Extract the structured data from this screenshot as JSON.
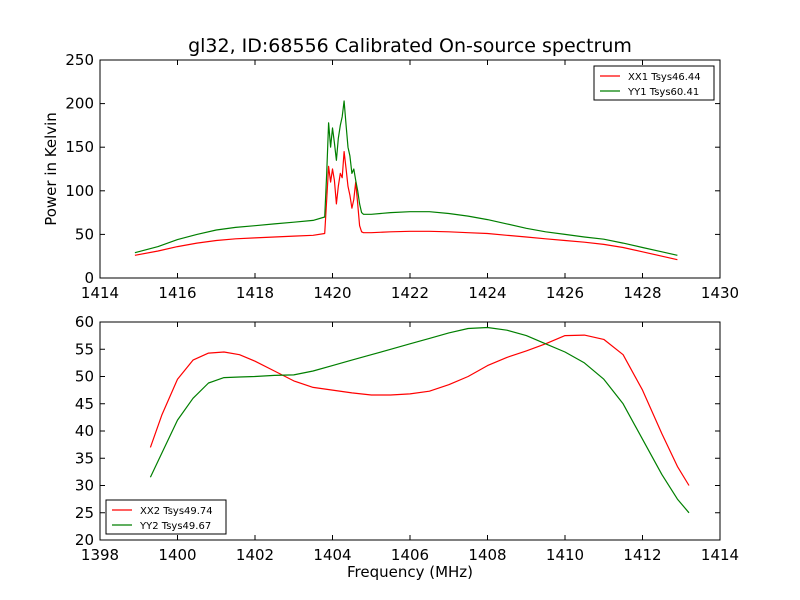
{
  "figure_title": "gl32, ID:68556 Calibrated On-source spectrum",
  "colors": {
    "red": "#ff0000",
    "green": "#007f00"
  },
  "chart_data": [
    {
      "type": "line",
      "title": "gl32, ID:68556 Calibrated On-source spectrum",
      "xlabel": "",
      "ylabel": "Power in Kelvin",
      "xlim": [
        1414,
        1430
      ],
      "ylim": [
        0,
        250
      ],
      "xticks": [
        1414,
        1416,
        1418,
        1420,
        1422,
        1424,
        1426,
        1428,
        1430
      ],
      "yticks": [
        0,
        50,
        100,
        150,
        200,
        250
      ],
      "legend_position": "top-right",
      "series": [
        {
          "name": "XX1 Tsys46.44",
          "color": "#ff0000",
          "x": [
            1414.9,
            1415.5,
            1416.0,
            1416.5,
            1417.0,
            1417.5,
            1418.0,
            1418.5,
            1419.0,
            1419.5,
            1419.8,
            1419.85,
            1419.9,
            1419.95,
            1420.0,
            1420.05,
            1420.1,
            1420.15,
            1420.2,
            1420.25,
            1420.3,
            1420.35,
            1420.4,
            1420.45,
            1420.5,
            1420.55,
            1420.6,
            1420.65,
            1420.7,
            1420.75,
            1420.8,
            1421.0,
            1421.5,
            1422.0,
            1422.5,
            1423.0,
            1423.5,
            1424.0,
            1424.5,
            1425.0,
            1425.5,
            1426.0,
            1426.5,
            1427.0,
            1427.5,
            1428.0,
            1428.5,
            1428.9
          ],
          "y": [
            26,
            31,
            36,
            40,
            43,
            45,
            46,
            47,
            48,
            49,
            51,
            90,
            128,
            110,
            125,
            112,
            85,
            105,
            120,
            115,
            145,
            125,
            105,
            95,
            80,
            90,
            110,
            85,
            60,
            53,
            52,
            52,
            53,
            53.5,
            53.5,
            53,
            52,
            51,
            49,
            47,
            45,
            43,
            41,
            38.5,
            35,
            30,
            25,
            21
          ]
        },
        {
          "name": "YY1 Tsys60.41",
          "color": "#007f00",
          "x": [
            1414.9,
            1415.5,
            1416.0,
            1416.5,
            1417.0,
            1417.5,
            1418.0,
            1418.5,
            1419.0,
            1419.5,
            1419.8,
            1419.85,
            1419.9,
            1419.95,
            1420.0,
            1420.05,
            1420.1,
            1420.15,
            1420.2,
            1420.25,
            1420.3,
            1420.35,
            1420.4,
            1420.45,
            1420.5,
            1420.55,
            1420.6,
            1420.65,
            1420.7,
            1420.75,
            1420.8,
            1421.0,
            1421.5,
            1422.0,
            1422.5,
            1423.0,
            1423.5,
            1424.0,
            1424.5,
            1425.0,
            1425.5,
            1426.0,
            1426.5,
            1427.0,
            1427.5,
            1428.0,
            1428.5,
            1428.9
          ],
          "y": [
            29,
            36,
            44,
            50,
            55,
            58,
            60,
            62,
            64,
            66,
            70,
            120,
            178,
            150,
            172,
            155,
            135,
            160,
            175,
            185,
            203,
            175,
            150,
            140,
            120,
            125,
            112,
            100,
            85,
            75,
            73,
            73,
            75,
            76,
            76,
            74,
            71,
            67,
            62,
            57,
            53,
            50,
            47,
            44.5,
            40,
            35,
            30,
            26
          ]
        }
      ]
    },
    {
      "type": "line",
      "title": "",
      "xlabel": "Frequency (MHz)",
      "ylabel": "",
      "xlim": [
        1398,
        1414
      ],
      "ylim": [
        20,
        60
      ],
      "xticks": [
        1398,
        1400,
        1402,
        1404,
        1406,
        1408,
        1410,
        1412,
        1414
      ],
      "yticks": [
        20,
        25,
        30,
        35,
        40,
        45,
        50,
        55,
        60
      ],
      "legend_position": "bottom-left",
      "series": [
        {
          "name": "XX2 Tsys49.74",
          "color": "#ff0000",
          "x": [
            1399.3,
            1399.6,
            1400.0,
            1400.4,
            1400.8,
            1401.2,
            1401.6,
            1402.0,
            1402.5,
            1403.0,
            1403.5,
            1404.0,
            1404.5,
            1405.0,
            1405.5,
            1406.0,
            1406.5,
            1407.0,
            1407.5,
            1408.0,
            1408.5,
            1409.0,
            1409.5,
            1410.0,
            1410.5,
            1411.0,
            1411.5,
            1412.0,
            1412.5,
            1412.9,
            1413.2
          ],
          "y": [
            37,
            43,
            49.5,
            53,
            54.3,
            54.5,
            54,
            52.8,
            51,
            49.2,
            48,
            47.5,
            47,
            46.6,
            46.6,
            46.8,
            47.3,
            48.5,
            50,
            52,
            53.5,
            54.7,
            56,
            57.5,
            57.6,
            56.8,
            54,
            47.5,
            39.5,
            33.5,
            30
          ]
        },
        {
          "name": "YY2 Tsys49.67",
          "color": "#007f00",
          "x": [
            1399.3,
            1399.6,
            1400.0,
            1400.4,
            1400.8,
            1401.2,
            1401.6,
            1402.0,
            1402.5,
            1403.0,
            1403.5,
            1404.0,
            1404.5,
            1405.0,
            1405.5,
            1406.0,
            1406.5,
            1407.0,
            1407.5,
            1408.0,
            1408.5,
            1409.0,
            1409.5,
            1410.0,
            1410.5,
            1411.0,
            1411.5,
            1412.0,
            1412.5,
            1412.9,
            1413.2
          ],
          "y": [
            31.5,
            36,
            42,
            46,
            48.8,
            49.8,
            49.9,
            50,
            50.2,
            50.3,
            51,
            52,
            53,
            54,
            55,
            56,
            57,
            58,
            58.8,
            59,
            58.5,
            57.5,
            56,
            54.5,
            52.5,
            49.5,
            45,
            38.5,
            32,
            27.5,
            25
          ]
        }
      ]
    }
  ]
}
